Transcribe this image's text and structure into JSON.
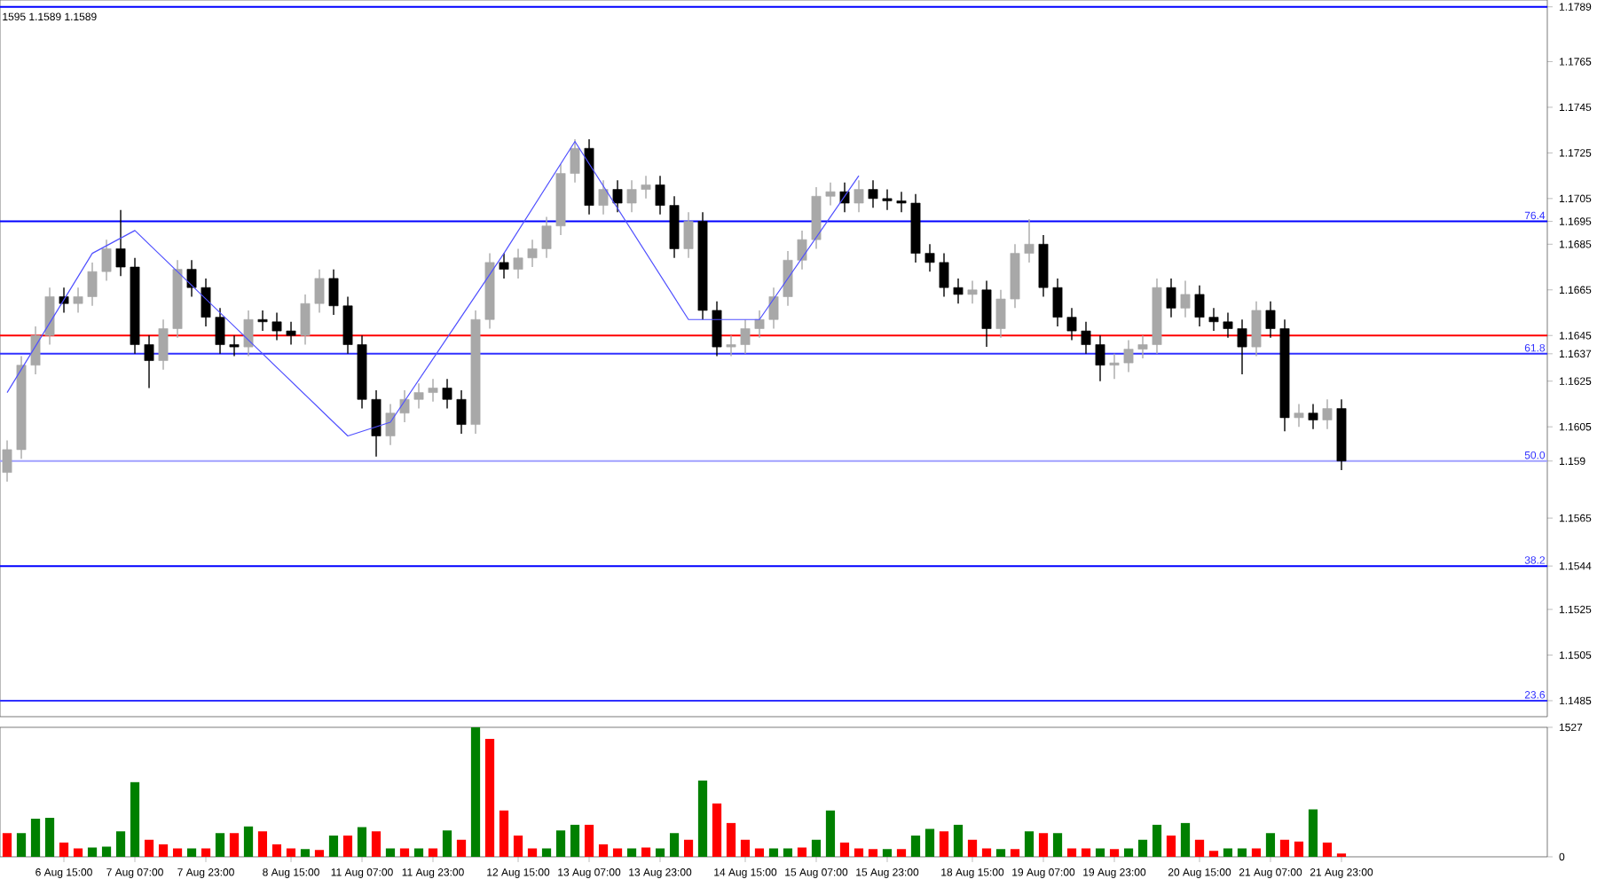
{
  "chart_data": [
    {
      "type": "candlestick",
      "categories": [
        null,
        null,
        null,
        null,
        null,
        null,
        null,
        null,
        null,
        null,
        null,
        null,
        null,
        null,
        null,
        null,
        null,
        null,
        null,
        null,
        null,
        null,
        null,
        null,
        null,
        null,
        null,
        null,
        null,
        null,
        null,
        null,
        null,
        null,
        null,
        null,
        null,
        null,
        null,
        null,
        null,
        null,
        null,
        null,
        null,
        null,
        null,
        null,
        null,
        null,
        null,
        null,
        null,
        null,
        null,
        null,
        null,
        null,
        null,
        null,
        null,
        null,
        null,
        null,
        null,
        null,
        null,
        null,
        null,
        null,
        null,
        null,
        null,
        null,
        null,
        null,
        null,
        null,
        null,
        null,
        null,
        null,
        null,
        null,
        null,
        null,
        null,
        null,
        null,
        null,
        null,
        null,
        null,
        null,
        null,
        null,
        null,
        null,
        null,
        null,
        null,
        null,
        null,
        null,
        null,
        null,
        null,
        null,
        null
      ],
      "ohlc": [
        [
          1.1585,
          1.1599,
          1.1581,
          1.1595
        ],
        [
          1.1595,
          1.1636,
          1.1591,
          1.1632
        ],
        [
          1.1632,
          1.1649,
          1.1628,
          1.1645
        ],
        [
          1.1645,
          1.1666,
          1.1641,
          1.1662
        ],
        [
          1.1662,
          1.1666,
          1.1655,
          1.1659
        ],
        [
          1.1659,
          1.1666,
          1.1655,
          1.1662
        ],
        [
          1.1662,
          1.1677,
          1.1658,
          1.1673
        ],
        [
          1.1673,
          1.1687,
          1.1669,
          1.1683
        ],
        [
          1.1683,
          1.17,
          1.1671,
          1.1675
        ],
        [
          1.1675,
          1.1679,
          1.1637,
          1.1641
        ],
        [
          1.1641,
          1.1645,
          1.1622,
          1.1634
        ],
        [
          1.1634,
          1.1652,
          1.163,
          1.1648
        ],
        [
          1.1648,
          1.1678,
          1.1644,
          1.1674
        ],
        [
          1.1674,
          1.1678,
          1.1662,
          1.1666
        ],
        [
          1.1666,
          1.167,
          1.1649,
          1.1653
        ],
        [
          1.1653,
          1.1657,
          1.1637,
          1.1641
        ],
        [
          1.1641,
          1.1645,
          1.1636,
          1.164
        ],
        [
          1.164,
          1.1656,
          1.1636,
          1.1652
        ],
        [
          1.1652,
          1.1656,
          1.1647,
          1.1651
        ],
        [
          1.1651,
          1.1655,
          1.1643,
          1.1647
        ],
        [
          1.1647,
          1.1651,
          1.1641,
          1.1645
        ],
        [
          1.1645,
          1.1663,
          1.1641,
          1.1659
        ],
        [
          1.1659,
          1.1674,
          1.1655,
          1.167
        ],
        [
          1.167,
          1.1674,
          1.1654,
          1.1658
        ],
        [
          1.1658,
          1.1662,
          1.1637,
          1.1641
        ],
        [
          1.1641,
          1.1645,
          1.1613,
          1.1617
        ],
        [
          1.1617,
          1.1621,
          1.1592,
          1.1601
        ],
        [
          1.1601,
          1.1615,
          1.1597,
          1.1611
        ],
        [
          1.1611,
          1.1621,
          1.1607,
          1.1617
        ],
        [
          1.1617,
          1.1624,
          1.1613,
          1.162
        ],
        [
          1.162,
          1.1626,
          1.1616,
          1.1622
        ],
        [
          1.1622,
          1.1626,
          1.1613,
          1.1617
        ],
        [
          1.1617,
          1.1621,
          1.1602,
          1.1606
        ],
        [
          1.1606,
          1.1656,
          1.1602,
          1.1652
        ],
        [
          1.1652,
          1.1681,
          1.1648,
          1.1677
        ],
        [
          1.1677,
          1.1681,
          1.167,
          1.1674
        ],
        [
          1.1674,
          1.1683,
          1.167,
          1.1679
        ],
        [
          1.1679,
          1.1687,
          1.1675,
          1.1683
        ],
        [
          1.1683,
          1.1697,
          1.1679,
          1.1693
        ],
        [
          1.1693,
          1.172,
          1.1689,
          1.1716
        ],
        [
          1.1716,
          1.1731,
          1.1712,
          1.1727
        ],
        [
          1.1727,
          1.1731,
          1.1698,
          1.1702
        ],
        [
          1.1702,
          1.1713,
          1.1698,
          1.1709
        ],
        [
          1.1709,
          1.1713,
          1.1699,
          1.1703
        ],
        [
          1.1703,
          1.1713,
          1.1699,
          1.1709
        ],
        [
          1.1709,
          1.1715,
          1.1705,
          1.1711
        ],
        [
          1.1711,
          1.1715,
          1.1698,
          1.1702
        ],
        [
          1.1702,
          1.1706,
          1.1679,
          1.1683
        ],
        [
          1.1683,
          1.1699,
          1.1679,
          1.1695
        ],
        [
          1.1695,
          1.1699,
          1.1652,
          1.1656
        ],
        [
          1.1656,
          1.166,
          1.1636,
          1.164
        ],
        [
          1.164,
          1.1645,
          1.1636,
          1.1641
        ],
        [
          1.1641,
          1.1652,
          1.1637,
          1.1648
        ],
        [
          1.1648,
          1.1656,
          1.1644,
          1.1652
        ],
        [
          1.1652,
          1.1666,
          1.1648,
          1.1662
        ],
        [
          1.1662,
          1.1682,
          1.1658,
          1.1678
        ],
        [
          1.1678,
          1.1691,
          1.1674,
          1.1687
        ],
        [
          1.1687,
          1.171,
          1.1683,
          1.1706
        ],
        [
          1.1706,
          1.1712,
          1.1702,
          1.1708
        ],
        [
          1.1708,
          1.1712,
          1.1699,
          1.1703
        ],
        [
          1.1703,
          1.1713,
          1.1699,
          1.1709
        ],
        [
          1.1709,
          1.1713,
          1.1701,
          1.1705
        ],
        [
          1.1705,
          1.1709,
          1.17,
          1.1704
        ],
        [
          1.1704,
          1.1708,
          1.1699,
          1.1703
        ],
        [
          1.1703,
          1.1707,
          1.1677,
          1.1681
        ],
        [
          1.1681,
          1.1685,
          1.1673,
          1.1677
        ],
        [
          1.1677,
          1.1681,
          1.1662,
          1.1666
        ],
        [
          1.1666,
          1.167,
          1.1659,
          1.1663
        ],
        [
          1.1663,
          1.1669,
          1.1659,
          1.1665
        ],
        [
          1.1665,
          1.1669,
          1.164,
          1.1648
        ],
        [
          1.1648,
          1.1665,
          1.1644,
          1.1661
        ],
        [
          1.1661,
          1.1685,
          1.1657,
          1.1681
        ],
        [
          1.1681,
          1.1696,
          1.1677,
          1.1685
        ],
        [
          1.1685,
          1.1689,
          1.1662,
          1.1666
        ],
        [
          1.1666,
          1.167,
          1.1649,
          1.1653
        ],
        [
          1.1653,
          1.1657,
          1.1643,
          1.1647
        ],
        [
          1.1647,
          1.1651,
          1.1637,
          1.1641
        ],
        [
          1.1641,
          1.1645,
          1.1625,
          1.1632
        ],
        [
          1.1632,
          1.1637,
          1.1626,
          1.1633
        ],
        [
          1.1633,
          1.1643,
          1.1629,
          1.1639
        ],
        [
          1.1639,
          1.1645,
          1.1635,
          1.1641
        ],
        [
          1.1641,
          1.167,
          1.1637,
          1.1666
        ],
        [
          1.1666,
          1.167,
          1.1653,
          1.1657
        ],
        [
          1.1657,
          1.1669,
          1.1653,
          1.1663
        ],
        [
          1.1663,
          1.1667,
          1.1649,
          1.1653
        ],
        [
          1.1653,
          1.1657,
          1.1647,
          1.1651
        ],
        [
          1.1651,
          1.1655,
          1.1644,
          1.1648
        ],
        [
          1.1648,
          1.1652,
          1.1628,
          1.164
        ],
        [
          1.164,
          1.166,
          1.1636,
          1.1656
        ],
        [
          1.1656,
          1.166,
          1.1644,
          1.1648
        ],
        [
          1.1648,
          1.1652,
          1.1603,
          1.1609
        ],
        [
          1.1609,
          1.1615,
          1.1605,
          1.1611
        ],
        [
          1.1611,
          1.1615,
          1.1604,
          1.1608
        ],
        [
          1.1608,
          1.1617,
          1.1604,
          1.1613
        ],
        [
          1.1613,
          1.1617,
          1.1586,
          1.159
        ],
        null,
        null,
        null,
        null,
        null,
        null,
        null,
        null,
        null,
        null,
        null,
        null,
        null,
        null
      ],
      "colors": [
        "#a8a8a8",
        "#a8a8a8",
        "#a8a8a8",
        "#a8a8a8",
        "#000000",
        "#a8a8a8",
        "#a8a8a8",
        "#a8a8a8",
        "#000000",
        "#000000",
        "#000000",
        "#a8a8a8",
        "#a8a8a8",
        "#000000",
        "#000000",
        "#000000",
        "#000000",
        "#a8a8a8",
        "#000000",
        "#000000",
        "#000000",
        "#a8a8a8",
        "#a8a8a8",
        "#000000",
        "#000000",
        "#000000",
        "#000000",
        "#a8a8a8",
        "#a8a8a8",
        "#a8a8a8",
        "#a8a8a8",
        "#000000",
        "#000000",
        "#a8a8a8",
        "#a8a8a8",
        "#000000",
        "#a8a8a8",
        "#a8a8a8",
        "#a8a8a8",
        "#a8a8a8",
        "#a8a8a8",
        "#000000",
        "#a8a8a8",
        "#000000",
        "#a8a8a8",
        "#a8a8a8",
        "#000000",
        "#000000",
        "#a8a8a8",
        "#000000",
        "#000000",
        "#a8a8a8",
        "#a8a8a8",
        "#a8a8a8",
        "#a8a8a8",
        "#a8a8a8",
        "#a8a8a8",
        "#a8a8a8",
        "#a8a8a8",
        "#000000",
        "#a8a8a8",
        "#000000",
        "#000000",
        "#000000",
        "#000000",
        "#000000",
        "#000000",
        "#000000",
        "#a8a8a8",
        "#000000",
        "#a8a8a8",
        "#a8a8a8",
        "#a8a8a8",
        "#000000",
        "#000000",
        "#000000",
        "#000000",
        "#000000",
        "#a8a8a8",
        "#a8a8a8",
        "#a8a8a8",
        "#a8a8a8",
        "#000000",
        "#a8a8a8",
        "#000000",
        "#000000",
        "#000000",
        "#000000",
        "#a8a8a8",
        "#000000",
        "#000000",
        "#a8a8a8",
        "#000000",
        "#a8a8a8",
        "#000000",
        null,
        null,
        null,
        null,
        null,
        null,
        null,
        null,
        null,
        null,
        null,
        null,
        null,
        null
      ],
      "series": [
        {
          "type": "line",
          "color": "#5050ff",
          "values": [
            1.162,
            null,
            null,
            null,
            null,
            null,
            1.1681,
            null,
            null,
            1.1691,
            null,
            null,
            null,
            null,
            null,
            null,
            null,
            null,
            null,
            null,
            null,
            null,
            null,
            null,
            1.1601,
            null,
            null,
            1.1607,
            null,
            null,
            null,
            null,
            null,
            null,
            null,
            1.1681,
            null,
            null,
            null,
            null,
            1.173,
            null,
            null,
            null,
            null,
            null,
            null,
            null,
            1.1652,
            null,
            null,
            null,
            null,
            1.1652,
            null,
            null,
            null,
            null,
            null,
            null,
            1.1715,
            null,
            null,
            null,
            null,
            null,
            null,
            null,
            null,
            null,
            null,
            null,
            null,
            null,
            null,
            null,
            null,
            null,
            null,
            null,
            null,
            null,
            null,
            null,
            null,
            null,
            null,
            null,
            null,
            null,
            null,
            null,
            null,
            null,
            null,
            null,
            null,
            null,
            null,
            null,
            null,
            null,
            null,
            null,
            null,
            null,
            null,
            null,
            null
          ]
        }
      ],
      "ylim": [
        1.1478,
        1.1792
      ],
      "yticks": [
        1.1485,
        1.1505,
        1.1525,
        1.1544,
        1.1565,
        1.159,
        1.1605,
        1.1625,
        1.1637,
        1.1645,
        1.1665,
        1.1685,
        1.1695,
        1.1705,
        1.1725,
        1.1745,
        1.1765,
        1.1789
      ],
      "tick_labels": "y",
      "ref_lines": [
        {
          "axis": "y",
          "value": 1.1789,
          "color": "#0000ff"
        },
        {
          "axis": "y",
          "value": 1.1695,
          "color": "#0000ff"
        },
        {
          "axis": "y",
          "value": 1.1645,
          "color": "#ff0000"
        },
        {
          "axis": "y",
          "value": 1.1637,
          "color": "#3030ff"
        },
        {
          "axis": "y",
          "value": 1.159,
          "color": "#a0a0ff"
        },
        {
          "axis": "y",
          "value": 1.1544,
          "color": "#0000ff"
        },
        {
          "axis": "y",
          "value": 1.1485,
          "color": "#3030ff"
        }
      ],
      "annotations": [
        "1595 1.1589 1.1589",
        {
          "text": "76.4",
          "y": 1.1695
        },
        {
          "text": "61.8",
          "y": 1.1637
        },
        {
          "text": "50.0",
          "y": 1.159
        },
        {
          "text": "38.2",
          "y": 1.1544
        },
        {
          "text": "23.6",
          "y": 1.1485
        }
      ]
    },
    {
      "type": "bar",
      "categories": [
        null,
        null,
        null,
        null,
        "6 Aug 15:00",
        null,
        null,
        null,
        null,
        "7 Aug 07:00",
        null,
        null,
        null,
        null,
        "7 Aug 23:00",
        null,
        null,
        null,
        null,
        null,
        "8 Aug 15:00",
        null,
        null,
        null,
        null,
        "11 Aug 07:00",
        null,
        null,
        null,
        null,
        "11 Aug 23:00",
        null,
        null,
        null,
        null,
        null,
        "12 Aug 15:00",
        null,
        null,
        null,
        null,
        "13 Aug 07:00",
        null,
        null,
        null,
        null,
        "13 Aug 23:00",
        null,
        null,
        null,
        null,
        null,
        "14 Aug 15:00",
        null,
        null,
        null,
        null,
        "15 Aug 07:00",
        null,
        null,
        null,
        null,
        "15 Aug 23:00",
        null,
        null,
        null,
        null,
        null,
        "18 Aug 15:00",
        null,
        null,
        null,
        null,
        "19 Aug 07:00",
        null,
        null,
        null,
        null,
        "19 Aug 23:00",
        null,
        null,
        null,
        null,
        null,
        "20 Aug 15:00",
        null,
        null,
        null,
        null,
        "21 Aug 07:00",
        null,
        null,
        null,
        null,
        "21 Aug 23:00",
        null,
        null,
        null,
        null,
        null,
        null,
        null,
        null,
        null,
        null,
        null,
        null,
        null,
        null
      ],
      "values": [
        280,
        280,
        450,
        460,
        170,
        100,
        110,
        120,
        300,
        880,
        200,
        150,
        100,
        100,
        100,
        280,
        280,
        360,
        300,
        150,
        100,
        90,
        80,
        250,
        250,
        350,
        300,
        100,
        100,
        100,
        100,
        310,
        200,
        1527,
        1390,
        550,
        250,
        100,
        100,
        310,
        380,
        380,
        150,
        100,
        100,
        110,
        100,
        280,
        200,
        900,
        630,
        400,
        200,
        100,
        100,
        100,
        110,
        200,
        550,
        170,
        100,
        90,
        90,
        90,
        250,
        330,
        300,
        380,
        200,
        100,
        90,
        90,
        300,
        280,
        280,
        100,
        100,
        100,
        90,
        100,
        200,
        380,
        250,
        400,
        200,
        70,
        100,
        100,
        100,
        280,
        200,
        180,
        560,
        170,
        40,
        null,
        null,
        null,
        null,
        null,
        null,
        null,
        null,
        null,
        null,
        null,
        null,
        null,
        null
      ],
      "colors": [
        "#ff0000",
        "#008000",
        "#008000",
        "#008000",
        "#ff0000",
        "#ff0000",
        "#008000",
        "#008000",
        "#008000",
        "#008000",
        "#ff0000",
        "#ff0000",
        "#ff0000",
        "#008000",
        "#ff0000",
        "#008000",
        "#ff0000",
        "#008000",
        "#ff0000",
        "#ff0000",
        "#ff0000",
        "#008000",
        "#ff0000",
        "#008000",
        "#ff0000",
        "#008000",
        "#ff0000",
        "#008000",
        "#ff0000",
        "#008000",
        "#ff0000",
        "#008000",
        "#ff0000",
        "#008000",
        "#ff0000",
        "#ff0000",
        "#ff0000",
        "#ff0000",
        "#008000",
        "#008000",
        "#008000",
        "#ff0000",
        "#ff0000",
        "#ff0000",
        "#008000",
        "#ff0000",
        "#008000",
        "#008000",
        "#ff0000",
        "#008000",
        "#ff0000",
        "#ff0000",
        "#ff0000",
        "#ff0000",
        "#008000",
        "#008000",
        "#ff0000",
        "#008000",
        "#008000",
        "#ff0000",
        "#ff0000",
        "#ff0000",
        "#008000",
        "#ff0000",
        "#008000",
        "#008000",
        "#ff0000",
        "#008000",
        "#ff0000",
        "#ff0000",
        "#008000",
        "#ff0000",
        "#008000",
        "#ff0000",
        "#008000",
        "#ff0000",
        "#ff0000",
        "#008000",
        "#ff0000",
        "#008000",
        "#008000",
        "#008000",
        "#ff0000",
        "#008000",
        "#ff0000",
        "#ff0000",
        "#008000",
        "#008000",
        "#ff0000",
        "#008000",
        "#ff0000",
        "#ff0000",
        "#008000",
        "#ff0000",
        "#ff0000",
        null,
        null,
        null,
        null,
        null,
        null,
        null,
        null,
        null,
        null,
        null,
        null,
        null,
        null
      ],
      "ylim": [
        0,
        1527
      ],
      "yticks": [
        0,
        1527
      ]
    }
  ]
}
